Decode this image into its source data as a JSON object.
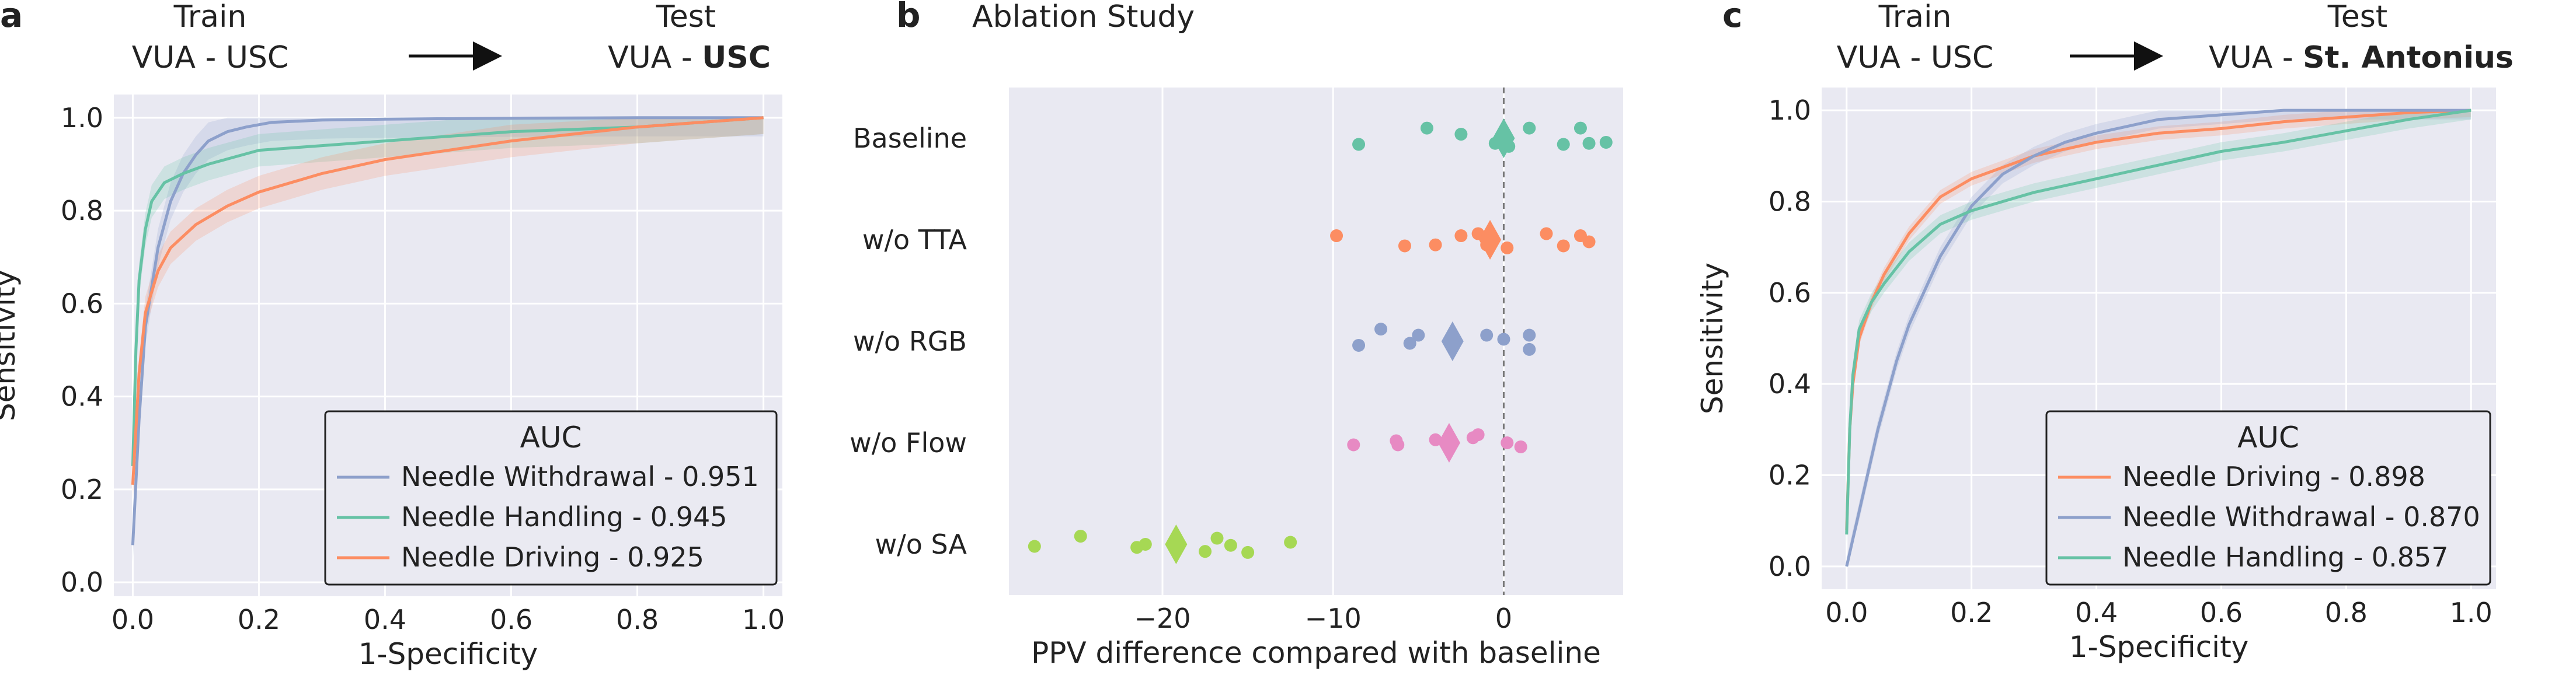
{
  "panels": {
    "a": {
      "letter": "a",
      "train_label": "Train",
      "train_set": "VUA - USC",
      "test_label": "Test",
      "test_prefix": "VUA - ",
      "test_site": "USC"
    },
    "b": {
      "letter": "b",
      "title": "Ablation Study"
    },
    "c": {
      "letter": "c",
      "train_label": "Train",
      "train_set": "VUA - USC",
      "test_label": "Test",
      "test_prefix": "VUA - ",
      "test_site": "St. Antonius"
    }
  },
  "colors": {
    "background": "#e9e9f2",
    "grid": "#ffffff",
    "teal": "#66c2a5",
    "orange": "#fc8d62",
    "blue": "#8da0cb",
    "pink": "#e78ac3",
    "green": "#a6d854"
  },
  "chart_data": [
    {
      "type": "line",
      "panel": "a",
      "xlabel": "1-Specificity",
      "ylabel": "Sensitivity",
      "xlim": [
        -0.03,
        1.03
      ],
      "ylim": [
        -0.03,
        1.05
      ],
      "xticks": [
        "0.0",
        "0.2",
        "0.4",
        "0.6",
        "0.8",
        "1.0"
      ],
      "yticks": [
        "0.0",
        "0.2",
        "0.4",
        "0.6",
        "0.8",
        "1.0"
      ],
      "grid": true,
      "legend": {
        "title": "AUC",
        "position": "lower right",
        "entries": [
          "Needle Withdrawal - 0.951",
          "Needle Handling - 0.945",
          "Needle Driving - 0.925"
        ]
      },
      "series": [
        {
          "name": "Needle Withdrawal",
          "color": "#8da0cb",
          "x": [
            0,
            0.01,
            0.02,
            0.04,
            0.06,
            0.08,
            0.1,
            0.12,
            0.15,
            0.18,
            0.22,
            0.3,
            0.4,
            0.6,
            0.8,
            1.0
          ],
          "y": [
            0.08,
            0.35,
            0.55,
            0.72,
            0.82,
            0.88,
            0.92,
            0.95,
            0.97,
            0.98,
            0.99,
            0.995,
            0.997,
            0.999,
            1.0,
            1.0
          ],
          "band": 0.04
        },
        {
          "name": "Needle Handling",
          "color": "#66c2a5",
          "x": [
            0,
            0.005,
            0.01,
            0.02,
            0.03,
            0.05,
            0.08,
            0.12,
            0.2,
            0.3,
            0.4,
            0.5,
            0.6,
            0.8,
            0.9,
            1.0
          ],
          "y": [
            0.25,
            0.5,
            0.65,
            0.76,
            0.82,
            0.86,
            0.88,
            0.9,
            0.93,
            0.94,
            0.95,
            0.96,
            0.97,
            0.98,
            0.99,
            1.0
          ],
          "band": 0.035
        },
        {
          "name": "Needle Driving",
          "color": "#fc8d62",
          "x": [
            0,
            0.01,
            0.02,
            0.04,
            0.06,
            0.1,
            0.15,
            0.2,
            0.25,
            0.3,
            0.4,
            0.5,
            0.6,
            0.8,
            0.9,
            1.0
          ],
          "y": [
            0.21,
            0.45,
            0.58,
            0.67,
            0.72,
            0.77,
            0.81,
            0.84,
            0.86,
            0.88,
            0.91,
            0.93,
            0.95,
            0.98,
            0.99,
            1.0
          ],
          "band": 0.035
        }
      ]
    },
    {
      "type": "scatter",
      "panel": "b",
      "xlabel": "PPV difference compared with baseline",
      "xlim": [
        -29,
        7
      ],
      "xticks": [
        -20,
        -10,
        0
      ],
      "xtick_labels": [
        "−20",
        "−10",
        "0"
      ],
      "reference_line": 0,
      "grid": true,
      "categories": [
        "Baseline",
        "w/o TTA",
        "w/o RGB",
        "w/o Flow",
        "w/o SA"
      ],
      "series": [
        {
          "name": "Baseline",
          "color": "#66c2a5",
          "mean": 0,
          "points": [
            -8.5,
            -4.5,
            -2.5,
            -0.5,
            0.0,
            0.3,
            1.5,
            3.5,
            4.5,
            5.0,
            6.0
          ],
          "jitter": [
            0.06,
            -0.1,
            -0.04,
            0.05,
            0.06,
            0.08,
            -0.1,
            0.06,
            -0.1,
            0.05,
            0.04
          ]
        },
        {
          "name": "w/o TTA",
          "color": "#fc8d62",
          "mean": -0.8,
          "points": [
            -9.8,
            -5.8,
            -4.0,
            -2.5,
            -1.5,
            -1.0,
            0.2,
            2.5,
            3.5,
            4.5,
            5.0
          ],
          "jitter": [
            -0.04,
            0.06,
            0.05,
            -0.04,
            -0.06,
            0.05,
            0.08,
            -0.06,
            0.06,
            -0.04,
            0.02
          ]
        },
        {
          "name": "w/o RGB",
          "color": "#8da0cb",
          "mean": -3.0,
          "points": [
            -8.5,
            -7.2,
            -5.5,
            -5.0,
            -1.0,
            0.0,
            1.5,
            1.5
          ],
          "jitter": [
            0.04,
            -0.12,
            0.02,
            -0.06,
            -0.06,
            -0.02,
            -0.06,
            0.08
          ]
        },
        {
          "name": "w/o Flow",
          "color": "#e78ac3",
          "mean": -3.2,
          "points": [
            -8.8,
            -6.3,
            -6.2,
            -4.0,
            -1.8,
            -1.5,
            0.2,
            1.0
          ],
          "jitter": [
            0.02,
            -0.02,
            0.02,
            -0.03,
            -0.05,
            -0.08,
            0.0,
            0.04
          ]
        },
        {
          "name": "w/o SA",
          "color": "#a6d854",
          "mean": -19.2,
          "points": [
            -27.5,
            -24.8,
            -21.5,
            -21.0,
            -17.5,
            -16.8,
            -16.0,
            -15.0,
            -12.5
          ],
          "jitter": [
            0.02,
            -0.08,
            0.03,
            0.0,
            0.07,
            -0.06,
            0.01,
            0.08,
            -0.02
          ]
        }
      ]
    },
    {
      "type": "line",
      "panel": "c",
      "xlabel": "1-Specificity",
      "ylabel": "Sensitivity",
      "xlim": [
        -0.04,
        1.04
      ],
      "ylim": [
        -0.05,
        1.05
      ],
      "xticks": [
        "0.0",
        "0.2",
        "0.4",
        "0.6",
        "0.8",
        "1.0"
      ],
      "yticks": [
        "0.0",
        "0.2",
        "0.4",
        "0.6",
        "0.8",
        "1.0"
      ],
      "grid": true,
      "legend": {
        "title": "AUC",
        "position": "lower right",
        "entries": [
          "Needle Driving - 0.898",
          "Needle Withdrawal - 0.870",
          "Needle Handling - 0.857"
        ]
      },
      "series": [
        {
          "name": "Needle Driving",
          "color": "#fc8d62",
          "x": [
            0,
            0.005,
            0.01,
            0.02,
            0.04,
            0.06,
            0.1,
            0.15,
            0.2,
            0.3,
            0.4,
            0.5,
            0.6,
            0.7,
            0.8,
            0.9,
            1.0
          ],
          "y": [
            0.08,
            0.3,
            0.4,
            0.5,
            0.58,
            0.64,
            0.73,
            0.81,
            0.85,
            0.9,
            0.93,
            0.95,
            0.96,
            0.975,
            0.985,
            0.995,
            1.0
          ],
          "band": 0.015
        },
        {
          "name": "Needle Withdrawal",
          "color": "#8da0cb",
          "x": [
            0,
            0.02,
            0.05,
            0.08,
            0.1,
            0.15,
            0.2,
            0.25,
            0.3,
            0.35,
            0.4,
            0.5,
            0.6,
            0.7,
            0.8,
            1.0
          ],
          "y": [
            0.0,
            0.12,
            0.3,
            0.45,
            0.53,
            0.68,
            0.79,
            0.86,
            0.9,
            0.93,
            0.95,
            0.98,
            0.99,
            1.0,
            1.0,
            1.0
          ],
          "band": 0.02
        },
        {
          "name": "Needle Handling",
          "color": "#66c2a5",
          "x": [
            0,
            0.005,
            0.01,
            0.02,
            0.04,
            0.06,
            0.1,
            0.15,
            0.2,
            0.3,
            0.4,
            0.5,
            0.6,
            0.7,
            0.8,
            0.9,
            1.0
          ],
          "y": [
            0.07,
            0.3,
            0.42,
            0.52,
            0.58,
            0.62,
            0.69,
            0.75,
            0.78,
            0.82,
            0.85,
            0.88,
            0.91,
            0.93,
            0.955,
            0.98,
            1.0
          ],
          "band": 0.02
        }
      ]
    }
  ]
}
